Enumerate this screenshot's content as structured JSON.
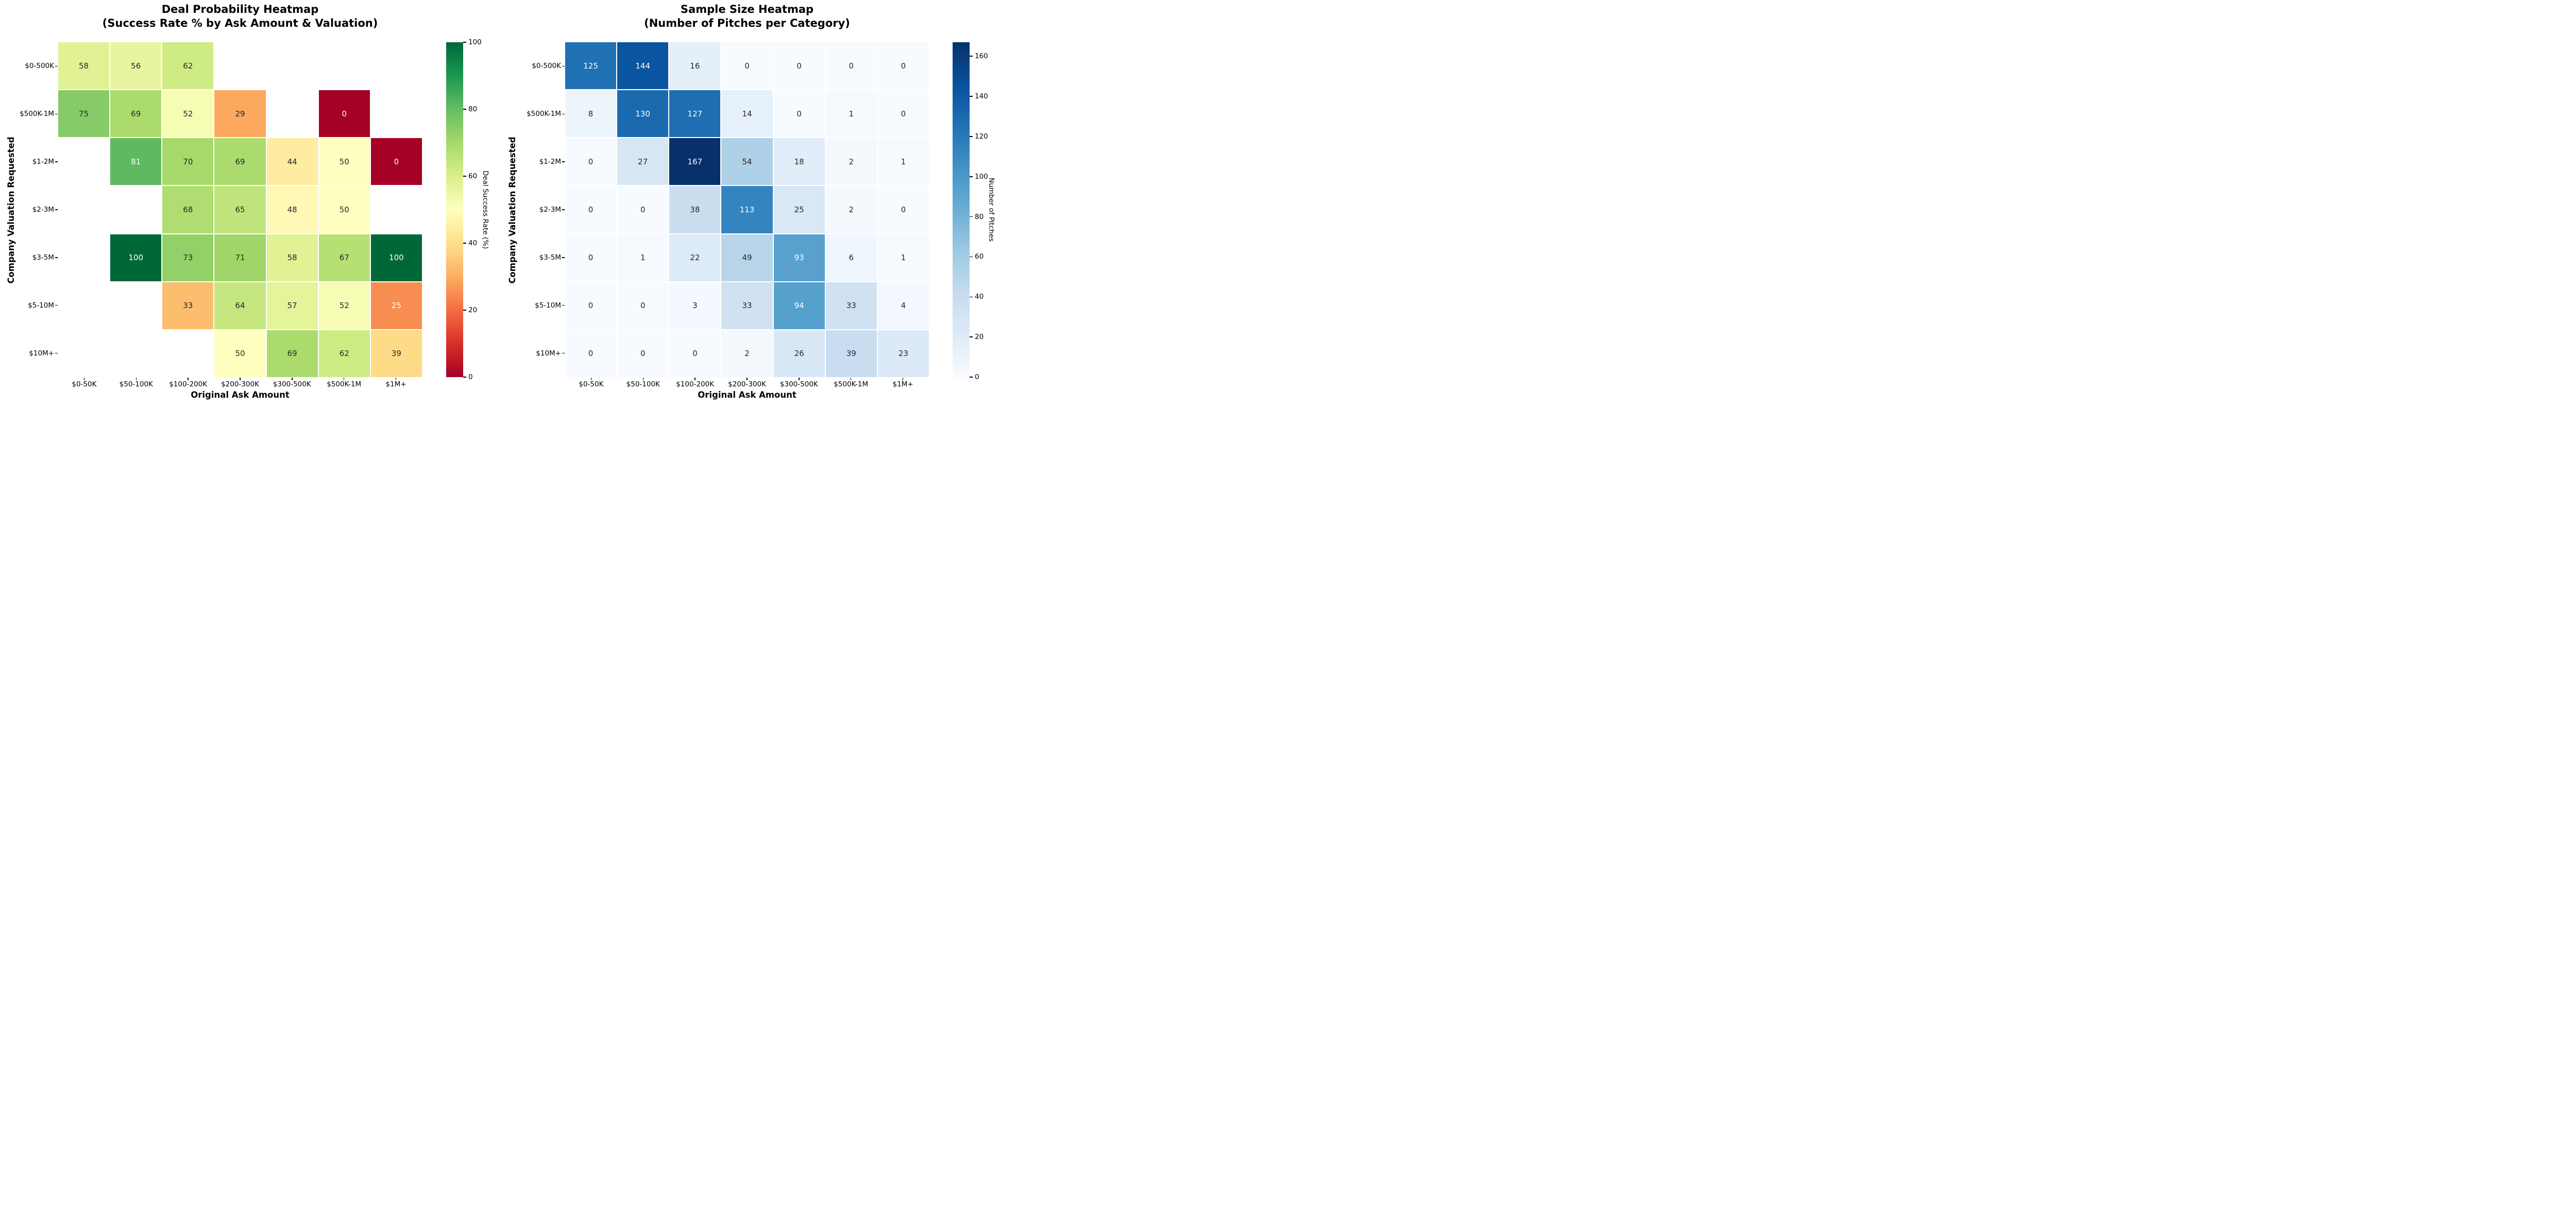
{
  "page": {
    "background": "#ffffff"
  },
  "chart_data": [
    {
      "type": "heatmap",
      "title_line1": "Deal Probability Heatmap",
      "title_line2": "(Success Rate % by Ask Amount & Valuation)",
      "xlabel": "Original Ask Amount",
      "ylabel": "Company Valuation Requested",
      "x_categories": [
        "$0-50K",
        "$50-100K",
        "$100-200K",
        "$200-300K",
        "$300-500K",
        "$500K-1M",
        "$1M+"
      ],
      "y_categories": [
        "$0-500K",
        "$500K-1M",
        "$1-2M",
        "$2-3M",
        "$3-5M",
        "$5-10M",
        "$10M+"
      ],
      "values": [
        [
          58,
          56,
          62,
          null,
          null,
          null,
          null
        ],
        [
          75,
          69,
          52,
          29,
          null,
          0,
          null
        ],
        [
          null,
          81,
          70,
          69,
          44,
          50,
          0
        ],
        [
          null,
          null,
          68,
          65,
          48,
          50,
          null
        ],
        [
          null,
          100,
          73,
          71,
          58,
          67,
          100
        ],
        [
          null,
          null,
          33,
          64,
          57,
          52,
          25
        ],
        [
          null,
          null,
          null,
          50,
          69,
          62,
          39
        ]
      ],
      "colormap": "RdYlGn",
      "colormap_anchors": [
        "#a50026",
        "#d73027",
        "#f46d43",
        "#fdae61",
        "#fee08b",
        "#ffffbf",
        "#d9ef8b",
        "#a6d96a",
        "#66bd63",
        "#1a9850",
        "#006837"
      ],
      "vmin": 0,
      "vmax": 100,
      "colorbar": {
        "label": "Deal Success Rate (%)",
        "ticks": [
          0,
          20,
          40,
          60,
          80,
          100
        ]
      },
      "annotation_colors": {
        "dark": "#262626",
        "light": "#ffffff"
      },
      "cell_gap_color": "#ffffff"
    },
    {
      "type": "heatmap",
      "title_line1": "Sample Size Heatmap",
      "title_line2": "(Number of Pitches per Category)",
      "xlabel": "Original Ask Amount",
      "ylabel": "Company Valuation Requested",
      "x_categories": [
        "$0-50K",
        "$50-100K",
        "$100-200K",
        "$200-300K",
        "$300-500K",
        "$500K-1M",
        "$1M+"
      ],
      "y_categories": [
        "$0-500K",
        "$500K-1M",
        "$1-2M",
        "$2-3M",
        "$3-5M",
        "$5-10M",
        "$10M+"
      ],
      "values": [
        [
          125,
          144,
          16,
          0,
          0,
          0,
          0
        ],
        [
          8,
          130,
          127,
          14,
          0,
          1,
          0
        ],
        [
          0,
          27,
          167,
          54,
          18,
          2,
          1
        ],
        [
          0,
          0,
          38,
          113,
          25,
          2,
          0
        ],
        [
          0,
          1,
          22,
          49,
          93,
          6,
          1
        ],
        [
          0,
          0,
          3,
          33,
          94,
          33,
          4
        ],
        [
          0,
          0,
          0,
          2,
          26,
          39,
          23
        ]
      ],
      "colormap": "Blues",
      "colormap_anchors": [
        "#f7fbff",
        "#deebf7",
        "#c6dbef",
        "#9ecae1",
        "#6baed6",
        "#4292c6",
        "#2171b5",
        "#08519c",
        "#08306b"
      ],
      "vmin": 0,
      "vmax": 167,
      "colorbar": {
        "label": "Number of Pitches",
        "ticks": [
          0,
          20,
          40,
          60,
          80,
          100,
          120,
          140,
          160
        ]
      },
      "annotation_colors": {
        "dark": "#262626",
        "light": "#ffffff"
      },
      "cell_gap_color": "#ffffff"
    }
  ]
}
